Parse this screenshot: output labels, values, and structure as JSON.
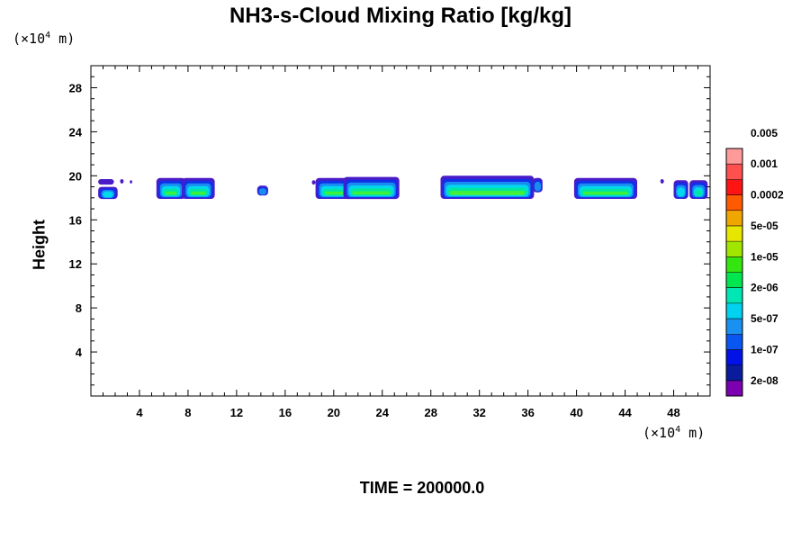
{
  "chart_data": {
    "type": "contour",
    "title": "NH3-s-Cloud Mixing Ratio [kg/kg]",
    "ylabel": "Height",
    "x_unit_label": "(×10",
    "x_unit_exp": "4",
    "x_unit_suffix": " m)",
    "y_unit_label": "(×10",
    "y_unit_exp": "4",
    "y_unit_suffix": " m)",
    "time_label": "TIME = 200000.0",
    "xlim": [
      0,
      51
    ],
    "ylim": [
      0,
      30
    ],
    "x_ticks": [
      4,
      8,
      12,
      16,
      20,
      24,
      28,
      32,
      36,
      40,
      44,
      48
    ],
    "y_ticks": [
      4,
      8,
      12,
      16,
      20,
      24,
      28
    ],
    "colorbar": {
      "colors": [
        "#7a00b0",
        "#0a1c9c",
        "#0012e6",
        "#0a56f0",
        "#1a90f0",
        "#00d2f0",
        "#00e6b4",
        "#00e650",
        "#34e610",
        "#a0e600",
        "#e6e600",
        "#f0a600",
        "#ff5a00",
        "#ff1414",
        "#ff5050",
        "#ff9a9a"
      ],
      "labels": [
        "2e-08",
        "1e-07",
        "5e-07",
        "2e-06",
        "1e-05",
        "5e-05",
        "0.0002",
        "0.001",
        "0.005"
      ]
    },
    "clouds": [
      {
        "x0": 0.6,
        "x1": 2.2,
        "y_bottom": 17.9,
        "y_top": 19.0,
        "levels": 4
      },
      {
        "x0": 0.6,
        "x1": 1.9,
        "y_bottom": 19.2,
        "y_top": 19.7,
        "levels": 1
      },
      {
        "x0": 2.4,
        "x1": 2.7,
        "y_bottom": 19.3,
        "y_top": 19.7,
        "levels": 1
      },
      {
        "x0": 3.2,
        "x1": 3.4,
        "y_bottom": 19.3,
        "y_top": 19.6,
        "levels": 1
      },
      {
        "x0": 5.4,
        "x1": 7.8,
        "y_bottom": 17.9,
        "y_top": 19.8,
        "levels": 6
      },
      {
        "x0": 7.5,
        "x1": 10.2,
        "y_bottom": 17.9,
        "y_top": 19.8,
        "levels": 6
      },
      {
        "x0": 13.7,
        "x1": 14.6,
        "y_bottom": 18.2,
        "y_top": 19.1,
        "levels": 3
      },
      {
        "x0": 18.2,
        "x1": 18.5,
        "y_bottom": 19.2,
        "y_top": 19.6,
        "levels": 1
      },
      {
        "x0": 18.5,
        "x1": 21.5,
        "y_bottom": 17.9,
        "y_top": 19.8,
        "levels": 6
      },
      {
        "x0": 20.8,
        "x1": 25.4,
        "y_bottom": 17.9,
        "y_top": 19.9,
        "levels": 6
      },
      {
        "x0": 28.8,
        "x1": 36.5,
        "y_bottom": 17.9,
        "y_top": 20.0,
        "levels": 7
      },
      {
        "x0": 36.4,
        "x1": 37.2,
        "y_bottom": 18.5,
        "y_top": 19.8,
        "levels": 3
      },
      {
        "x0": 39.8,
        "x1": 45.0,
        "y_bottom": 17.9,
        "y_top": 19.8,
        "levels": 6
      },
      {
        "x0": 46.9,
        "x1": 47.2,
        "y_bottom": 19.3,
        "y_top": 19.7,
        "levels": 1
      },
      {
        "x0": 48.0,
        "x1": 49.2,
        "y_bottom": 17.9,
        "y_top": 19.6,
        "levels": 4
      },
      {
        "x0": 49.3,
        "x1": 50.8,
        "y_bottom": 17.9,
        "y_top": 19.6,
        "levels": 5
      }
    ]
  }
}
